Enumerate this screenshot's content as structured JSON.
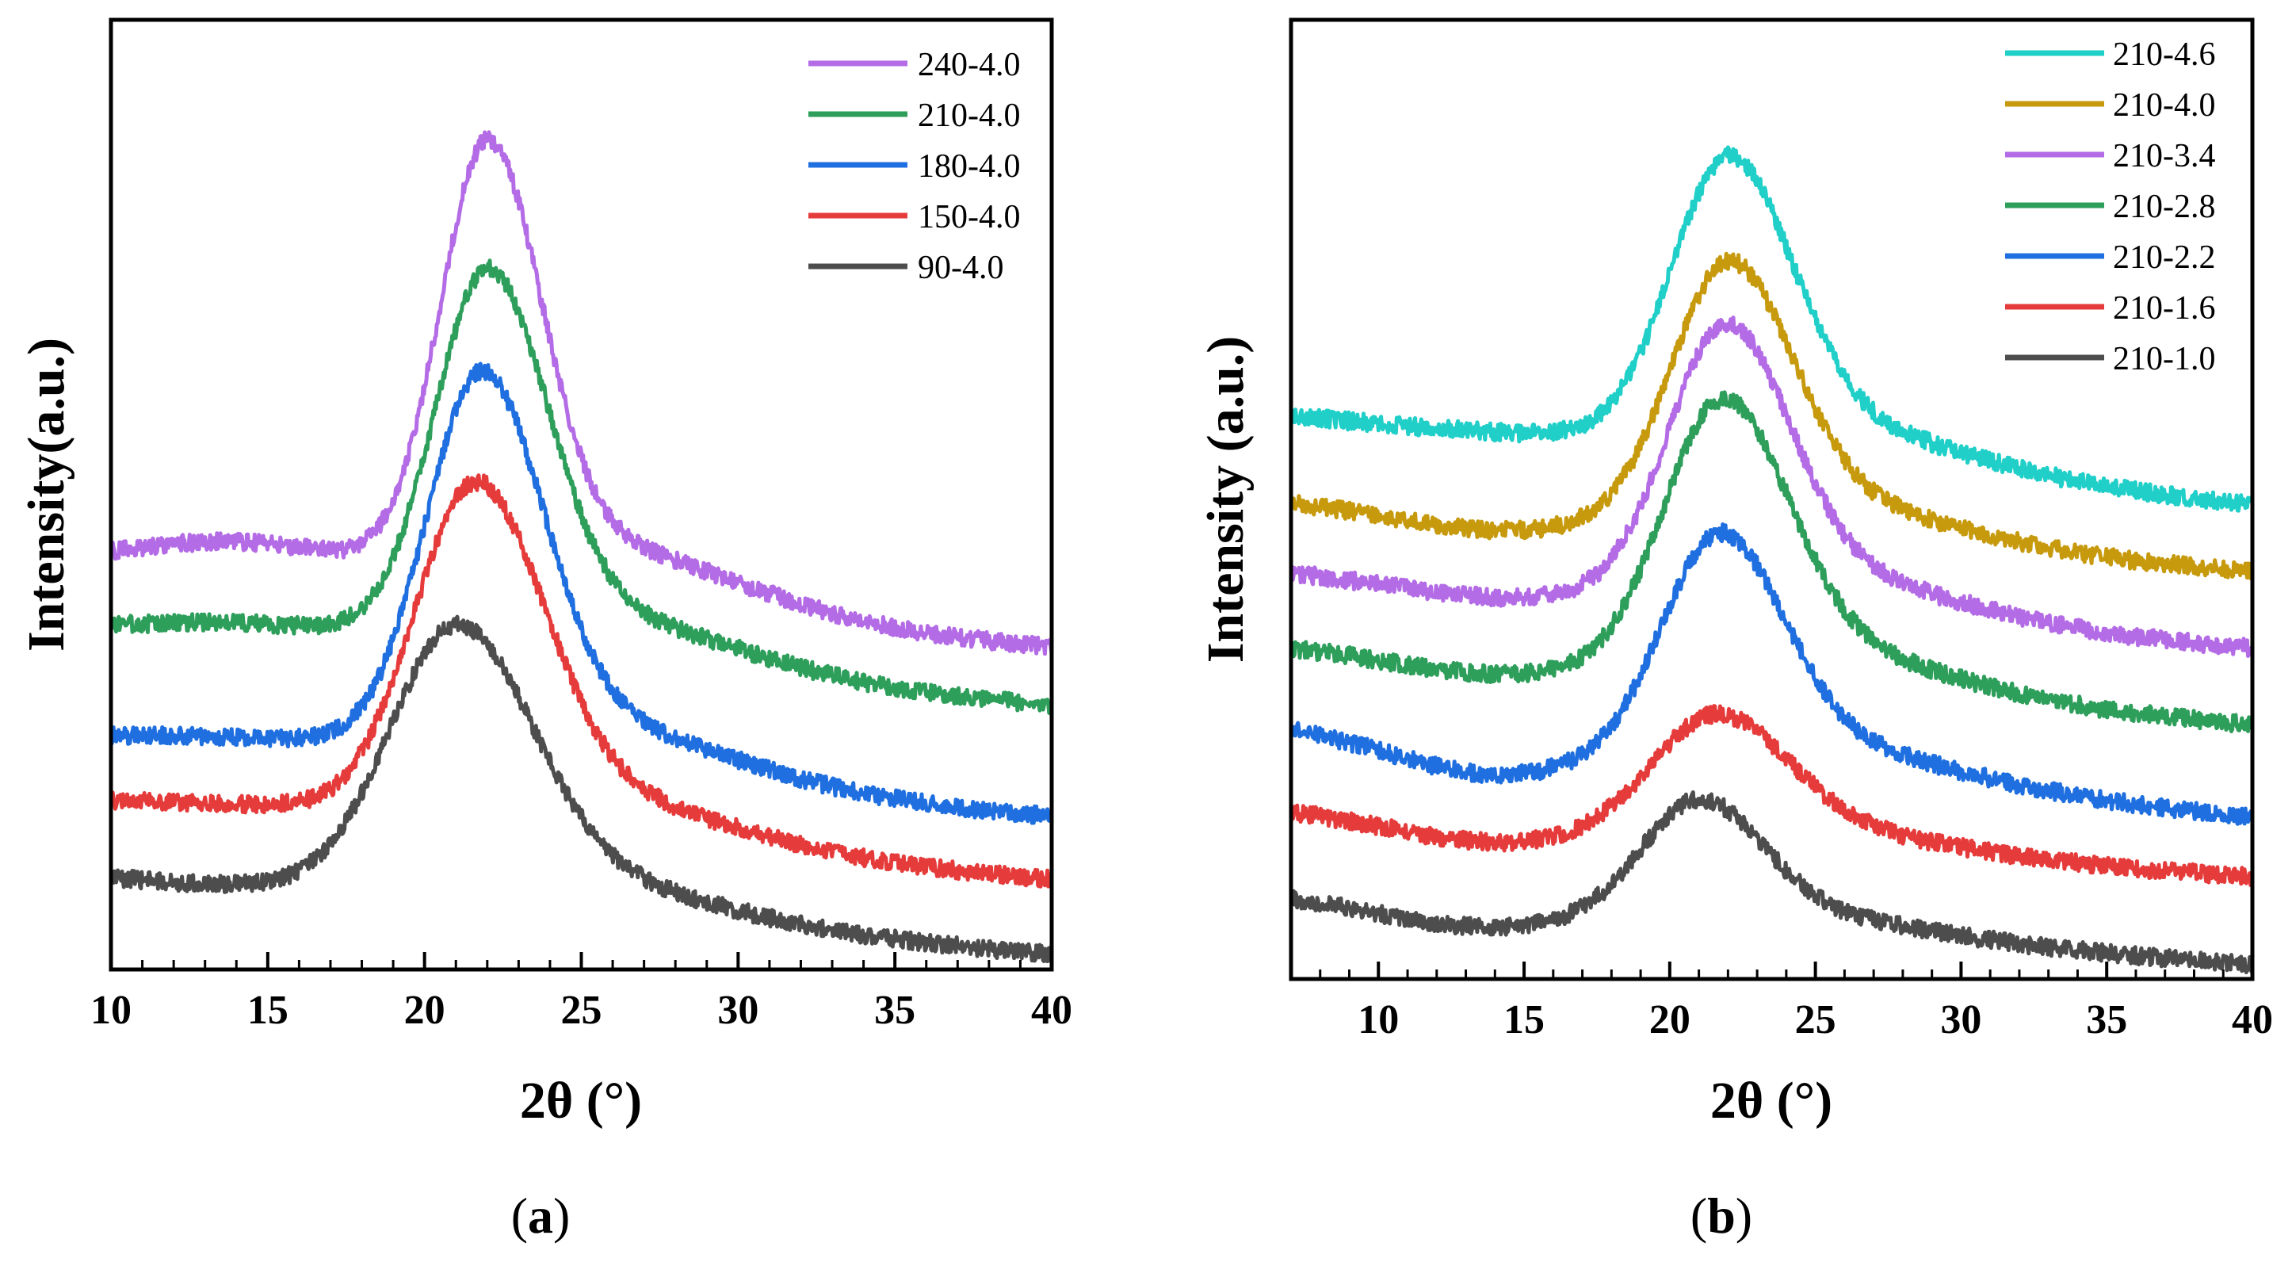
{
  "chart_data": [
    {
      "type": "line",
      "panel_label_prefix": "(",
      "panel_label": "a",
      "panel_label_suffix": ")",
      "xlabel": "2θ (°)",
      "ylabel": "Intensity(a.u.)",
      "xlim": [
        10,
        40
      ],
      "ylim": [
        0,
        1
      ],
      "xticks": [
        "10",
        "15",
        "20",
        "25",
        "30",
        "35",
        "40"
      ],
      "grid": false,
      "legend_position": "top-right",
      "y_tick_labels_shown": false,
      "series": [
        {
          "name": "240-4.0",
          "color": "#b46be6",
          "baseline": 0.447,
          "peak_center": 22.0,
          "peak_height": 0.428,
          "peak_width": 1.25,
          "start_value": 0.425,
          "end_value": 0.339
        },
        {
          "name": "210-4.0",
          "color": "#2e9e5b",
          "baseline": 0.362,
          "peak_center": 22.0,
          "peak_height": 0.367,
          "peak_width": 1.4,
          "start_value": 0.355,
          "end_value": 0.278
        },
        {
          "name": "180-4.0",
          "color": "#1f6fe0",
          "baseline": 0.242,
          "peak_center": 21.8,
          "peak_height": 0.373,
          "peak_width": 1.45,
          "start_value": 0.241,
          "end_value": 0.161
        },
        {
          "name": "150-4.0",
          "color": "#e63b3b",
          "baseline": 0.172,
          "peak_center": 21.6,
          "peak_height": 0.329,
          "peak_width": 1.6,
          "start_value": 0.173,
          "end_value": 0.095
        },
        {
          "name": "90-4.0",
          "color": "#4d4d4d",
          "baseline": 0.088,
          "peak_center": 21.0,
          "peak_height": 0.263,
          "peak_width": 1.75,
          "start_value": 0.097,
          "end_value": 0.016
        }
      ]
    },
    {
      "type": "line",
      "panel_label_prefix": "(",
      "panel_label": "b",
      "panel_label_suffix": ")",
      "xlabel": "2θ (°)",
      "ylabel": "Intensity (a.u.)",
      "xlim": [
        7,
        40
      ],
      "ylim": [
        0,
        1
      ],
      "xticks": [
        "10",
        "15",
        "20",
        "25",
        "30",
        "35",
        "40"
      ],
      "grid": false,
      "legend_position": "top-right",
      "y_tick_labels_shown": false,
      "series": [
        {
          "name": "210-4.6",
          "color": "#1fcfc8",
          "baseline": 0.568,
          "peak_center": 22.0,
          "peak_height": 0.278,
          "peak_width": 1.6,
          "start_value": 0.587,
          "end_value": 0.495
        },
        {
          "name": "210-4.0",
          "color": "#c79a0e",
          "baseline": 0.466,
          "peak_center": 22.0,
          "peak_height": 0.253,
          "peak_width": 1.6,
          "start_value": 0.497,
          "end_value": 0.425
        },
        {
          "name": "210-3.4",
          "color": "#b46be6",
          "baseline": 0.396,
          "peak_center": 21.9,
          "peak_height": 0.263,
          "peak_width": 1.6,
          "start_value": 0.424,
          "end_value": 0.345
        },
        {
          "name": "210-2.8",
          "color": "#2e9e5b",
          "baseline": 0.316,
          "peak_center": 21.8,
          "peak_height": 0.263,
          "peak_width": 1.65,
          "start_value": 0.346,
          "end_value": 0.265
        },
        {
          "name": "210-2.2",
          "color": "#1f6fe0",
          "baseline": 0.212,
          "peak_center": 21.7,
          "peak_height": 0.218,
          "peak_width": 1.6,
          "start_value": 0.263,
          "end_value": 0.169
        },
        {
          "name": "210-1.6",
          "color": "#e63b3b",
          "baseline": 0.142,
          "peak_center": 21.6,
          "peak_height": 0.117,
          "peak_width": 1.8,
          "start_value": 0.176,
          "end_value": 0.106
        },
        {
          "name": "210-1.0",
          "color": "#4d4d4d",
          "baseline": 0.054,
          "peak_center": 21.0,
          "peak_height": 0.117,
          "peak_width": 1.6,
          "start_value": 0.087,
          "end_value": 0.015
        }
      ]
    }
  ]
}
